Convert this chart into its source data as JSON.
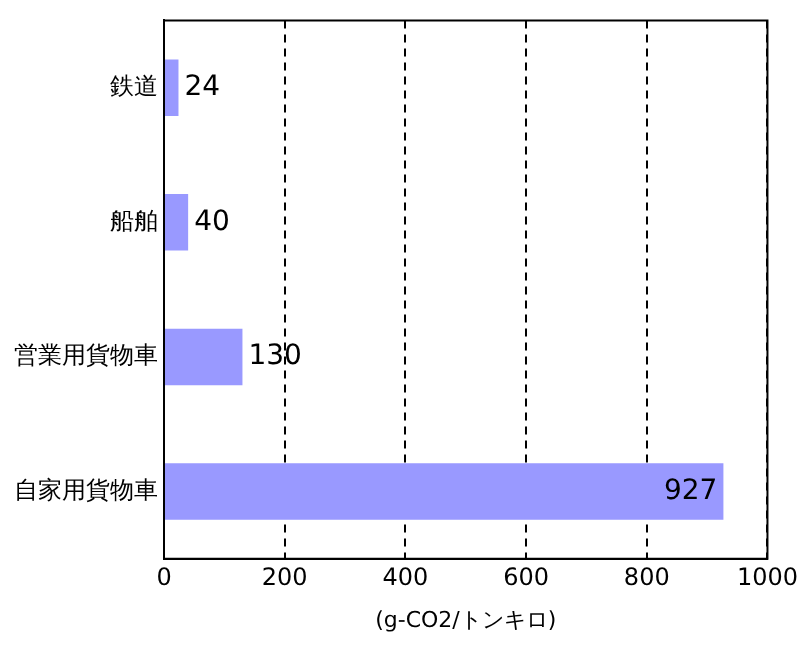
{
  "chart_data": {
    "type": "bar",
    "orientation": "horizontal",
    "categories": [
      "鉄道",
      "船舶",
      "営業用貨物車",
      "自家用貨物車"
    ],
    "values": [
      24,
      40,
      130,
      927
    ],
    "color": "#9999ff",
    "xlim": [
      0,
      1000
    ],
    "xticks": [
      0,
      200,
      400,
      600,
      800,
      1000
    ],
    "xlabel": "(g-CO2/トンキロ)",
    "grid": "x",
    "line_style": "dashed",
    "data_labels": true,
    "legend": false
  }
}
